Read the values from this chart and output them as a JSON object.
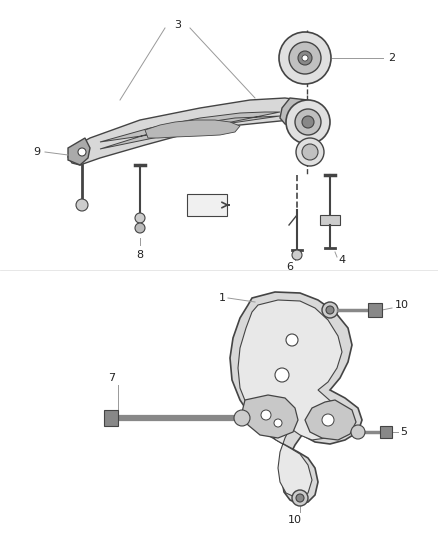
{
  "background_color": "#ffffff",
  "figsize": [
    4.38,
    5.33
  ],
  "dpi": 100,
  "line_color": "#999999",
  "part_color": "#444444",
  "part_fill": "#d8d8d8",
  "part_fill_dark": "#aaaaaa",
  "fwd_color": "#555555"
}
